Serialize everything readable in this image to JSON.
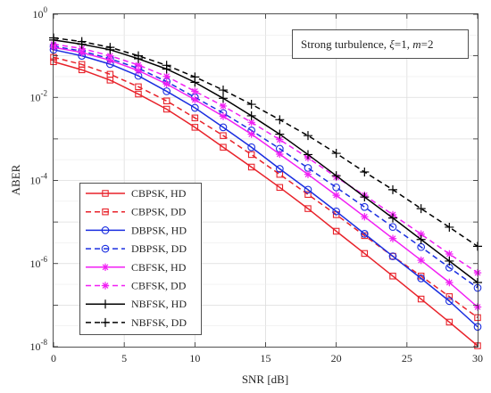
{
  "chart_data": {
    "type": "line",
    "title": "",
    "xlabel": "SNR [dB]",
    "ylabel": "ABER",
    "xlim": [
      0,
      30
    ],
    "ylim": [
      1e-08,
      1
    ],
    "yscale": "log",
    "grid": true,
    "x_ticks": [
      "0",
      "5",
      "10",
      "15",
      "20",
      "25",
      "30"
    ],
    "y_ticks": [
      {
        "base": "10",
        "exp": "0"
      },
      {
        "base": "10",
        "exp": "-2"
      },
      {
        "base": "10",
        "exp": "-4"
      },
      {
        "base": "10",
        "exp": "-6"
      },
      {
        "base": "10",
        "exp": "-8"
      }
    ],
    "annotation": {
      "prefix": "Strong turbulence, ",
      "xi": "ξ",
      "xi_value": "=1, ",
      "m": "m",
      "m_value": "=2"
    },
    "legend_position": "bottom-left",
    "x": [
      0,
      2,
      4,
      6,
      8,
      10,
      12,
      14,
      16,
      18,
      20,
      22,
      24,
      26,
      28,
      30
    ],
    "series": [
      {
        "name": "CBPSK, HD",
        "color": "#e8222a",
        "dash": "solid",
        "marker": "square",
        "values": [
          0.072,
          0.046,
          0.026,
          0.012,
          0.0052,
          0.0019,
          0.00063,
          0.00021,
          6.8e-05,
          2.1e-05,
          6e-06,
          1.75e-06,
          5e-07,
          1.4e-07,
          3.9e-08,
          1.05e-08
        ]
      },
      {
        "name": "CBPSK, DD",
        "color": "#e8222a",
        "dash": "dashed",
        "marker": "square",
        "values": [
          0.092,
          0.062,
          0.036,
          0.018,
          0.0082,
          0.0032,
          0.0012,
          0.00042,
          0.00014,
          4.6e-05,
          1.5e-05,
          4.7e-06,
          1.5e-06,
          5e-07,
          1.6e-07,
          5e-08
        ]
      },
      {
        "name": "DBPSK, HD",
        "color": "#1a2ee0",
        "dash": "solid",
        "marker": "circle",
        "values": [
          0.14,
          0.1,
          0.063,
          0.033,
          0.014,
          0.0056,
          0.0019,
          0.00063,
          0.00019,
          6e-05,
          1.8e-05,
          5.2e-06,
          1.5e-06,
          4.4e-07,
          1.25e-07,
          3e-08
        ]
      },
      {
        "name": "DBPSK, DD",
        "color": "#1a2ee0",
        "dash": "dashed",
        "marker": "circle",
        "values": [
          0.17,
          0.13,
          0.085,
          0.05,
          0.024,
          0.01,
          0.0042,
          0.0016,
          0.00058,
          0.0002,
          6.8e-05,
          2.3e-05,
          7.6e-06,
          2.5e-06,
          8e-07,
          2.6e-07
        ]
      },
      {
        "name": "CBFSK, HD",
        "color": "#f11ff4",
        "dash": "solid",
        "marker": "star",
        "values": [
          0.16,
          0.12,
          0.078,
          0.044,
          0.021,
          0.0088,
          0.0035,
          0.0013,
          0.00043,
          0.00014,
          4.4e-05,
          1.34e-05,
          4e-06,
          1.2e-06,
          3.5e-07,
          9e-08
        ]
      },
      {
        "name": "CBFSK, DD",
        "color": "#f11ff4",
        "dash": "dashed",
        "marker": "star",
        "values": [
          0.19,
          0.15,
          0.1,
          0.06,
          0.032,
          0.014,
          0.0062,
          0.0025,
          0.00096,
          0.00035,
          0.00012,
          4.4e-05,
          1.5e-05,
          5.1e-06,
          1.7e-06,
          6e-07
        ]
      },
      {
        "name": "NBFSK, HD",
        "color": "#000000",
        "dash": "solid",
        "marker": "plus",
        "values": [
          0.24,
          0.19,
          0.14,
          0.085,
          0.048,
          0.023,
          0.0095,
          0.0036,
          0.0013,
          0.00042,
          0.00013,
          4e-05,
          1.25e-05,
          3.8e-06,
          1.15e-06,
          3.5e-07
        ]
      },
      {
        "name": "NBFSK, DD",
        "color": "#000000",
        "dash": "dashed",
        "marker": "plus",
        "values": [
          0.27,
          0.22,
          0.16,
          0.1,
          0.059,
          0.031,
          0.015,
          0.0068,
          0.0029,
          0.0012,
          0.00045,
          0.00016,
          6e-05,
          2.1e-05,
          7.5e-06,
          2.6e-06
        ]
      }
    ]
  }
}
